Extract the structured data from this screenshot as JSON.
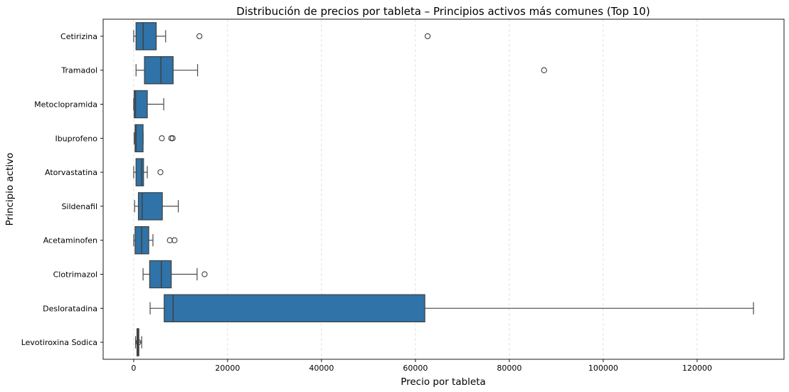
{
  "chart_data": {
    "type": "box",
    "orientation": "horizontal",
    "title": "Distribución de precios por tableta – Principios activos más comunes (Top 10)",
    "xlabel": "Precio por tableta",
    "ylabel": "Principio activo",
    "xlim": [
      -6500,
      138500
    ],
    "xticks": [
      0,
      20000,
      40000,
      60000,
      80000,
      100000,
      120000
    ],
    "grid": "x-dashed",
    "box_color": "#2f73a8",
    "categories": [
      "Cetirizina",
      "Tramadol",
      "Metoclopramida",
      "Ibuprofeno",
      "Atorvastatina",
      "Sildenafil",
      "Acetaminofen",
      "Clotrimazol",
      "Desloratadina",
      "Levotiroxina Sodica"
    ],
    "boxes": [
      {
        "category": "Cetirizina",
        "whisker_low": 0,
        "q1": 500,
        "median": 2000,
        "q3": 4800,
        "whisker_high": 6800,
        "outliers": [
          14000,
          62600
        ]
      },
      {
        "category": "Tramadol",
        "whisker_low": 500,
        "q1": 2300,
        "median": 5800,
        "q3": 8400,
        "whisker_high": 13600,
        "outliers": [
          87400
        ]
      },
      {
        "category": "Metoclopramida",
        "whisker_low": 0,
        "q1": 100,
        "median": 400,
        "q3": 2900,
        "whisker_high": 6400,
        "outliers": []
      },
      {
        "category": "Ibuprofeno",
        "whisker_low": 100,
        "q1": 300,
        "median": 500,
        "q3": 2000,
        "whisker_high": 2000,
        "outliers": [
          6000,
          8000,
          8300
        ]
      },
      {
        "category": "Atorvastatina",
        "whisker_low": 0,
        "q1": 500,
        "median": 1700,
        "q3": 2100,
        "whisker_high": 2900,
        "outliers": [
          5700
        ]
      },
      {
        "category": "Sildenafil",
        "whisker_low": 200,
        "q1": 1000,
        "median": 1800,
        "q3": 6100,
        "whisker_high": 9500,
        "outliers": []
      },
      {
        "category": "Acetaminofen",
        "whisker_low": 0,
        "q1": 300,
        "median": 1700,
        "q3": 3200,
        "whisker_high": 4100,
        "outliers": [
          7700,
          8700
        ]
      },
      {
        "category": "Clotrimazol",
        "whisker_low": 2000,
        "q1": 3400,
        "median": 5900,
        "q3": 8000,
        "whisker_high": 13500,
        "outliers": [
          15100
        ]
      },
      {
        "category": "Desloratadina",
        "whisker_low": 3500,
        "q1": 6500,
        "median": 8400,
        "q3": 62000,
        "whisker_high": 132000,
        "outliers": []
      },
      {
        "category": "Levotiroxina Sodica",
        "whisker_low": 400,
        "q1": 700,
        "median": 900,
        "q3": 1100,
        "whisker_high": 1700,
        "outliers": [
          1000
        ]
      }
    ]
  }
}
